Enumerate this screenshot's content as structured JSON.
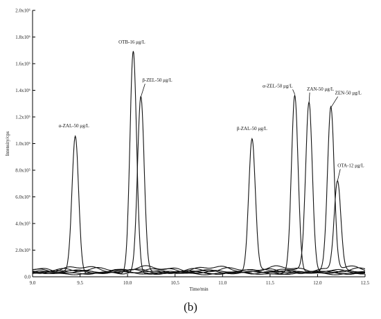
{
  "chart_data": {
    "type": "line",
    "xlabel": "Time/min",
    "ylabel": "Intensity/cps",
    "xlim": [
      9.0,
      12.5
    ],
    "ylim": [
      0,
      2000000
    ],
    "x_ticks": [
      "9.0",
      "9.5",
      "10.0",
      "10.5",
      "11.0",
      "11.5",
      "12.0",
      "12.5"
    ],
    "y_ticks": [
      "0.0",
      "2.0x10⁵",
      "4.0x10⁵",
      "6.0x10⁵",
      "8.0x10⁵",
      "1.0x10⁶",
      "1.2x10⁶",
      "1.4x10⁶",
      "1.6x10⁶",
      "1.8x10⁶",
      "2.0x10⁶"
    ],
    "grid": false,
    "series": [
      {
        "name": "α-ZAL-50 μg/L",
        "peak_time": 9.45,
        "peak_intensity": 1060000,
        "baseline": 30000
      },
      {
        "name": "OTB-16 μg/L",
        "peak_time": 10.06,
        "peak_intensity": 1700000,
        "baseline": 25000
      },
      {
        "name": "β-ZEL-50 μg/L",
        "peak_time": 10.14,
        "peak_intensity": 1350000,
        "baseline": 35000
      },
      {
        "name": "β-ZAL-50 μg/L",
        "peak_time": 11.31,
        "peak_intensity": 1040000,
        "baseline": 40000
      },
      {
        "name": "α-ZEL-50 μg/L",
        "peak_time": 11.76,
        "peak_intensity": 1370000,
        "baseline": 30000
      },
      {
        "name": "ZAN-50 μg/L",
        "peak_time": 11.91,
        "peak_intensity": 1300000,
        "baseline": 50000
      },
      {
        "name": "ZEN-50 μg/L",
        "peak_time": 12.14,
        "peak_intensity": 1270000,
        "baseline": 60000
      },
      {
        "name": "OTA-12 μg/L",
        "peak_time": 12.21,
        "peak_intensity": 720000,
        "baseline": 45000
      }
    ]
  },
  "caption": "(b)"
}
